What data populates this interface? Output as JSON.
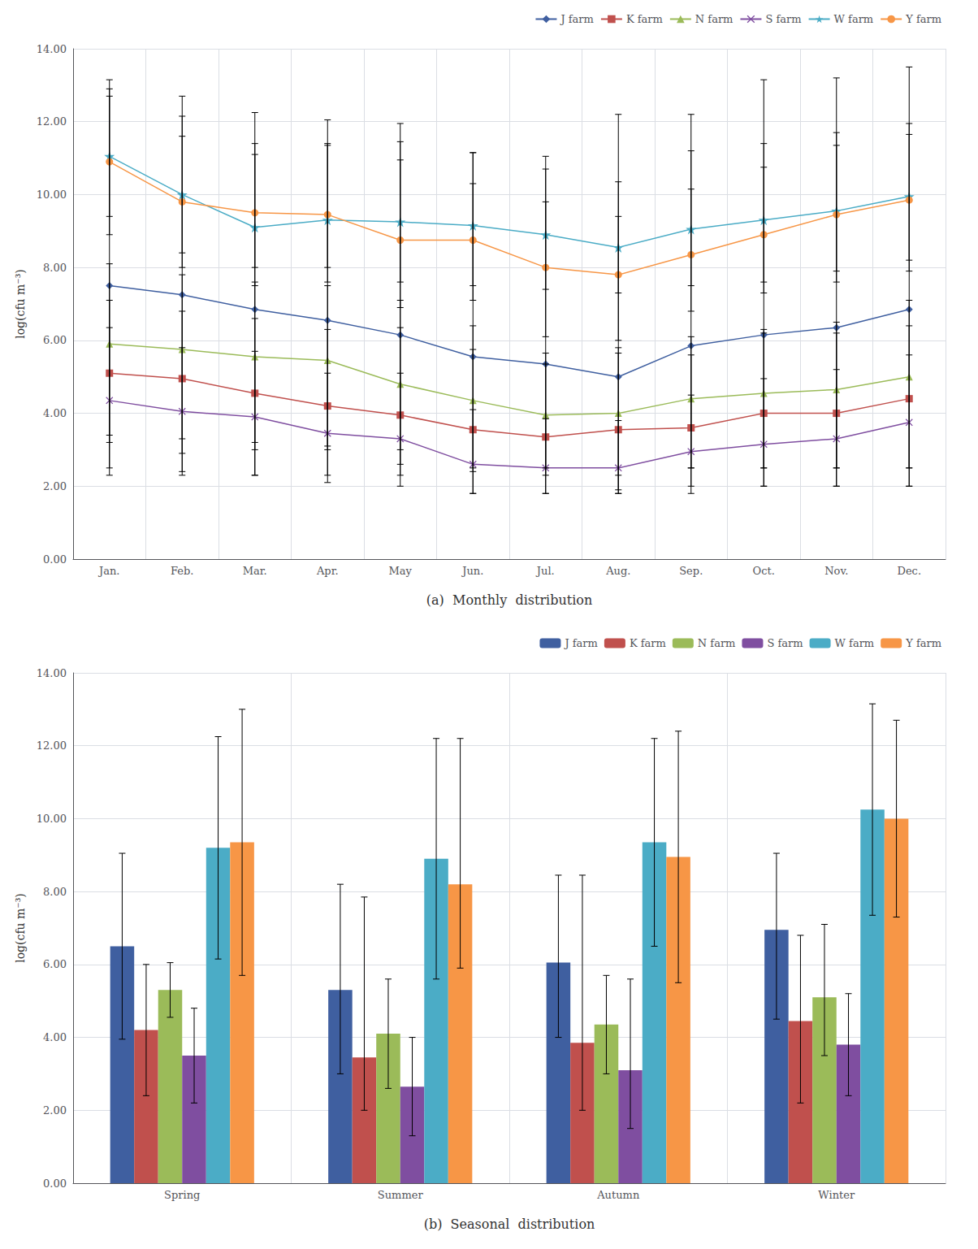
{
  "chart_data": [
    {
      "type": "line",
      "xlabel": "(a)  Monthly  distribution",
      "ylabel": "log(cfu m⁻³)",
      "categories": [
        "Jan.",
        "Feb.",
        "Mar.",
        "Apr.",
        "May",
        "Jun.",
        "Jul.",
        "Aug.",
        "Sep.",
        "Oct.",
        "Nov.",
        "Dec."
      ],
      "series": [
        {
          "name": "J farm",
          "color": "#3F5FA0",
          "marker": "diamond",
          "values": [
            7.5,
            7.25,
            6.85,
            6.55,
            6.15,
            5.55,
            5.35,
            5.0,
            5.85,
            6.15,
            6.35,
            6.85
          ],
          "error_upper": [
            5.4,
            5.45,
            5.4,
            5.5,
            5.8,
            5.6,
            5.7,
            7.2,
            6.35,
            7.0,
            6.85,
            6.65
          ],
          "error_lower": [
            4.3,
            4.35,
            3.85,
            3.55,
            3.15,
            3.05,
            2.85,
            3.1,
            3.35,
            3.65,
            3.85,
            4.35
          ]
        },
        {
          "name": "K farm",
          "color": "#C0504D",
          "marker": "square",
          "values": [
            5.1,
            4.95,
            4.55,
            4.2,
            3.95,
            3.55,
            3.35,
            3.55,
            3.6,
            4.0,
            4.0,
            4.4
          ],
          "error_upper": [
            2.0,
            1.85,
            2.05,
            2.1,
            2.4,
            2.2,
            2.0,
            2.1,
            2.0,
            2.2,
            2.2,
            2.0
          ],
          "error_lower": [
            2.6,
            2.55,
            2.25,
            2.1,
            1.95,
            1.75,
            1.55,
            1.75,
            1.8,
            2.0,
            2.0,
            2.4
          ]
        },
        {
          "name": "N farm",
          "color": "#9BBB59",
          "marker": "triangle",
          "values": [
            5.9,
            5.75,
            5.55,
            5.45,
            4.8,
            4.35,
            3.95,
            4.0,
            4.4,
            4.55,
            4.65,
            5.0
          ],
          "error_upper": [
            2.2,
            2.05,
            2.05,
            2.05,
            2.3,
            2.05,
            1.7,
            1.8,
            1.7,
            1.75,
            1.85,
            2.1
          ],
          "error_lower": [
            2.5,
            2.45,
            2.35,
            2.35,
            2.2,
            1.95,
            1.65,
            1.7,
            1.9,
            2.05,
            2.15,
            2.5
          ]
        },
        {
          "name": "S farm",
          "color": "#7F4EA0",
          "marker": "x",
          "values": [
            4.35,
            4.05,
            3.9,
            3.45,
            3.3,
            2.6,
            2.5,
            2.5,
            2.95,
            3.15,
            3.3,
            3.75
          ],
          "error_upper": [
            2.0,
            1.75,
            1.8,
            1.65,
            1.8,
            1.5,
            1.35,
            1.3,
            1.55,
            1.8,
            1.9,
            1.85
          ],
          "error_lower": [
            2.05,
            1.75,
            1.6,
            1.15,
            1.0,
            0.8,
            0.7,
            0.7,
            0.95,
            1.15,
            1.3,
            1.75
          ]
        },
        {
          "name": "W farm",
          "color": "#4BACC6",
          "marker": "star",
          "values": [
            11.05,
            10.0,
            9.1,
            9.3,
            9.25,
            9.15,
            8.9,
            8.55,
            9.05,
            9.3,
            9.55,
            9.95
          ],
          "error_upper": [
            2.1,
            2.15,
            2.0,
            2.1,
            2.2,
            2.0,
            1.8,
            1.8,
            2.15,
            2.1,
            2.15,
            2.0
          ],
          "error_lower": [
            2.15,
            2.0,
            1.6,
            1.7,
            1.65,
            1.65,
            1.5,
            1.25,
            1.55,
            1.7,
            1.95,
            2.05
          ]
        },
        {
          "name": "Y farm",
          "color": "#F79646",
          "marker": "circle",
          "values": [
            10.9,
            9.8,
            9.5,
            9.45,
            8.75,
            8.75,
            8.0,
            7.8,
            8.35,
            8.9,
            9.45,
            9.85
          ],
          "error_upper": [
            1.8,
            1.8,
            1.9,
            1.9,
            2.2,
            1.55,
            1.8,
            1.6,
            1.8,
            1.85,
            1.9,
            1.8
          ],
          "error_lower": [
            1.5,
            1.4,
            1.5,
            1.45,
            1.85,
            1.65,
            1.9,
            1.8,
            1.55,
            1.6,
            1.55,
            1.65
          ]
        }
      ],
      "ylim": [
        0,
        14
      ],
      "yticks": [
        {
          "value": 0,
          "label": "0.00"
        },
        {
          "value": 2,
          "label": "2.00"
        },
        {
          "value": 4,
          "label": "4.00"
        },
        {
          "value": 6,
          "label": "6.00"
        },
        {
          "value": 8,
          "label": "8.00"
        },
        {
          "value": 10,
          "label": "10.00"
        },
        {
          "value": 12,
          "label": "12.00"
        },
        {
          "value": 14,
          "label": "14.00"
        }
      ],
      "grid": true,
      "legend": "upper right"
    },
    {
      "type": "bar",
      "xlabel": "(b)  Seasonal  distribution",
      "ylabel": "log(cfu m⁻³)",
      "categories": [
        "Spring",
        "Summer",
        "Autumn",
        "Winter"
      ],
      "series": [
        {
          "name": "J farm",
          "color": "#3F5FA0",
          "values": [
            6.5,
            5.3,
            6.05,
            6.95
          ],
          "error_upper": [
            2.55,
            2.9,
            2.4,
            2.1
          ],
          "error_lower": [
            2.55,
            2.3,
            2.05,
            2.45
          ]
        },
        {
          "name": "K farm",
          "color": "#C0504D",
          "values": [
            4.2,
            3.45,
            3.85,
            4.45
          ],
          "error_upper": [
            1.8,
            4.4,
            4.6,
            2.35
          ],
          "error_lower": [
            1.8,
            1.45,
            1.85,
            2.25
          ]
        },
        {
          "name": "N farm",
          "color": "#9BBB59",
          "values": [
            5.3,
            4.1,
            4.35,
            5.1
          ],
          "error_upper": [
            0.75,
            1.5,
            1.35,
            2.0
          ],
          "error_lower": [
            0.75,
            1.5,
            1.35,
            1.6
          ]
        },
        {
          "name": "S farm",
          "color": "#7F4EA0",
          "values": [
            3.5,
            2.65,
            3.1,
            3.8
          ],
          "error_upper": [
            1.3,
            1.35,
            2.5,
            1.4
          ],
          "error_lower": [
            1.3,
            1.35,
            1.6,
            1.4
          ]
        },
        {
          "name": "W farm",
          "color": "#4BACC6",
          "values": [
            9.2,
            8.9,
            9.35,
            10.25
          ],
          "error_upper": [
            3.05,
            3.3,
            2.85,
            2.9
          ],
          "error_lower": [
            3.05,
            3.3,
            2.85,
            2.9
          ]
        },
        {
          "name": "Y farm",
          "color": "#F79646",
          "values": [
            9.35,
            8.2,
            8.95,
            10.0
          ],
          "error_upper": [
            3.65,
            4.0,
            3.45,
            2.7
          ],
          "error_lower": [
            3.65,
            2.3,
            3.45,
            2.7
          ]
        }
      ],
      "ylim": [
        0,
        14
      ],
      "yticks": [
        {
          "value": 0,
          "label": "0.00"
        },
        {
          "value": 2,
          "label": "2.00"
        },
        {
          "value": 4,
          "label": "4.00"
        },
        {
          "value": 6,
          "label": "6.00"
        },
        {
          "value": 8,
          "label": "8.00"
        },
        {
          "value": 10,
          "label": "10.00"
        },
        {
          "value": 12,
          "label": "12.00"
        },
        {
          "value": 14,
          "label": "14.00"
        }
      ],
      "grid": true,
      "legend": "upper right"
    }
  ]
}
